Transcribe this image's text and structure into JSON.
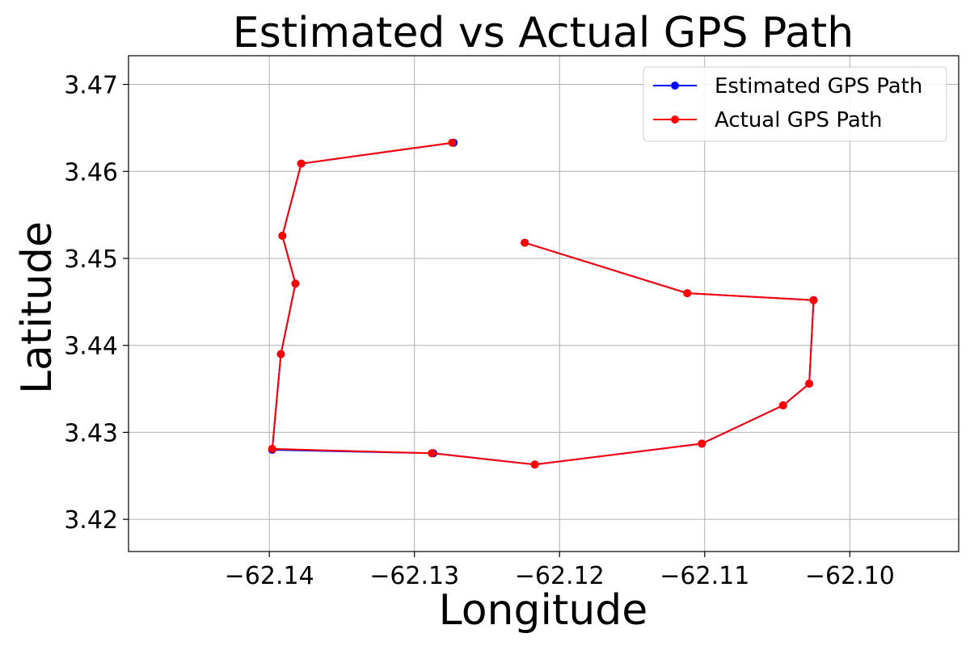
{
  "chart_data": {
    "type": "line",
    "title": "Estimated vs Actual GPS Path",
    "xlabel": "Longitude",
    "ylabel": "Latitude",
    "xlim": [
      -62.1497,
      -62.0925
    ],
    "ylim": [
      3.4163,
      3.4733
    ],
    "xticks": [
      -62.14,
      -62.13,
      -62.12,
      -62.11,
      -62.1
    ],
    "xtick_labels": [
      "−62.14",
      "−62.13",
      "−62.12",
      "−62.11",
      "−62.10"
    ],
    "yticks": [
      3.42,
      3.43,
      3.44,
      3.45,
      3.46,
      3.47
    ],
    "ytick_labels": [
      "3.42",
      "3.43",
      "3.44",
      "3.45",
      "3.46",
      "3.47"
    ],
    "grid": true,
    "legend_position": "top-right",
    "series": [
      {
        "name": "Estimated GPS Path",
        "color": "#0000ff",
        "x": [
          -62.1273,
          -62.1378,
          -62.1391,
          -62.1382,
          -62.1392,
          -62.1398,
          -62.1287,
          -62.1217,
          -62.1102,
          -62.1046,
          -62.1028,
          -62.1025,
          -62.1112,
          -62.1224
        ],
        "y": [
          3.4633,
          3.4609,
          3.4526,
          3.4471,
          3.439,
          3.428,
          3.4276,
          3.4263,
          3.4287,
          3.4331,
          3.4356,
          3.4452,
          3.446,
          3.4518
        ]
      },
      {
        "name": "Actual GPS Path",
        "color": "#ff0000",
        "x": [
          -62.1274,
          -62.1378,
          -62.1391,
          -62.1382,
          -62.1392,
          -62.1398,
          -62.1288,
          -62.1217,
          -62.1102,
          -62.1046,
          -62.1028,
          -62.1025,
          -62.1112,
          -62.1224
        ],
        "y": [
          3.4633,
          3.4609,
          3.4526,
          3.4471,
          3.439,
          3.4281,
          3.4276,
          3.4263,
          3.4287,
          3.4331,
          3.4356,
          3.4452,
          3.446,
          3.4518
        ]
      }
    ]
  }
}
